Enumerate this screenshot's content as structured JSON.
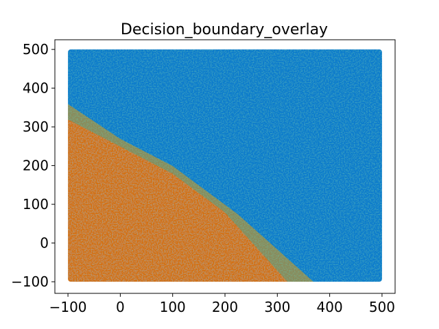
{
  "chart_data": {
    "type": "scatter",
    "title": "Decision_boundary_overlay",
    "xlabel": "",
    "ylabel": "",
    "xlim": [
      -125,
      525
    ],
    "ylim": [
      -130,
      525
    ],
    "x_ticks": [
      -100,
      0,
      100,
      200,
      300,
      400,
      500
    ],
    "y_ticks": [
      -100,
      0,
      100,
      200,
      300,
      400,
      500
    ],
    "x_tick_labels": [
      "−100",
      "0",
      "100",
      "200",
      "300",
      "400",
      "500"
    ],
    "y_tick_labels": [
      "−100",
      "0",
      "100",
      "200",
      "300",
      "400",
      "500"
    ],
    "grid": false,
    "legend": "none",
    "data_extent": {
      "x": [
        -100,
        500
      ],
      "y": [
        -100,
        500
      ]
    },
    "series": [
      {
        "region": "lower-left class",
        "color": "#d4700a",
        "polygon": [
          [
            -100,
            -100
          ],
          [
            320,
            -100
          ],
          [
            200,
            80
          ],
          [
            100,
            180
          ],
          [
            0,
            250
          ],
          [
            -100,
            320
          ]
        ]
      },
      {
        "region": "boundary band",
        "color": "#8a8a5a",
        "polygon": [
          [
            -100,
            320
          ],
          [
            0,
            250
          ],
          [
            100,
            180
          ],
          [
            200,
            80
          ],
          [
            320,
            -100
          ],
          [
            370,
            -100
          ],
          [
            225,
            75
          ],
          [
            100,
            200
          ],
          [
            0,
            270
          ],
          [
            -100,
            360
          ]
        ]
      },
      {
        "region": "upper-right class",
        "color": "#0a7acc",
        "polygon": [
          [
            -100,
            360
          ],
          [
            0,
            270
          ],
          [
            100,
            200
          ],
          [
            225,
            75
          ],
          [
            370,
            -100
          ],
          [
            500,
            -100
          ],
          [
            500,
            500
          ],
          [
            -100,
            500
          ]
        ]
      }
    ]
  }
}
